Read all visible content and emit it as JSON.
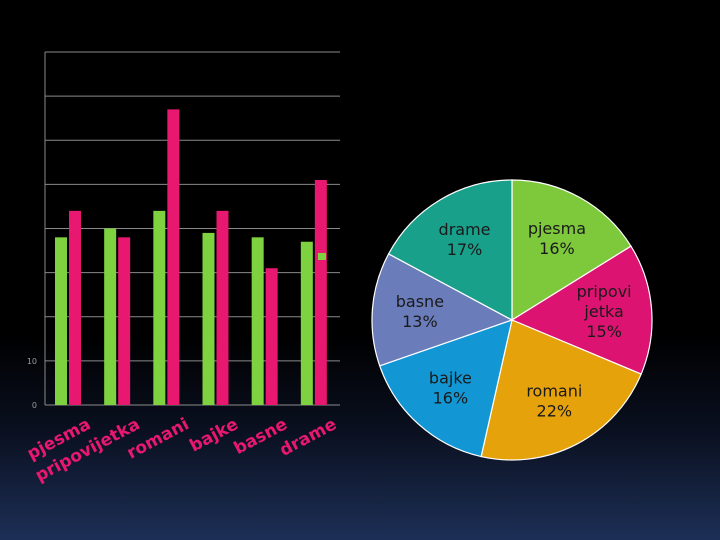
{
  "chart_data": [
    {
      "type": "bar",
      "categories": [
        "pjesma",
        "pripovijetka",
        "romani",
        "bajke",
        "basne",
        "drame"
      ],
      "series": [
        {
          "values": [
            38,
            40,
            44,
            39,
            38,
            37
          ]
        },
        {
          "values": [
            44,
            38,
            67,
            44,
            31,
            51
          ]
        }
      ],
      "y_tick_labels": [
        "0",
        "10"
      ],
      "ylim": [
        0,
        80
      ],
      "grid": true,
      "colors": [
        "#7ed13f",
        "#e8176f"
      ]
    },
    {
      "type": "pie",
      "slices": [
        {
          "label": "pjesma",
          "value": 16,
          "value_label": "16%",
          "color": "#7ec83c"
        },
        {
          "label": "pripovi jetka",
          "value": 15,
          "value_label": "15%",
          "color": "#dc1370"
        },
        {
          "label": "romani",
          "value": 22,
          "value_label": "22%",
          "color": "#e6a20b"
        },
        {
          "label": "bajke",
          "value": 16,
          "value_label": "16%",
          "color": "#1297d4"
        },
        {
          "label": "basne",
          "value": 13,
          "value_label": "13%",
          "color": "#6b7cbb"
        },
        {
          "label": "drame",
          "value": 17,
          "value_label": "17%",
          "color": "#18a08a"
        }
      ]
    }
  ]
}
